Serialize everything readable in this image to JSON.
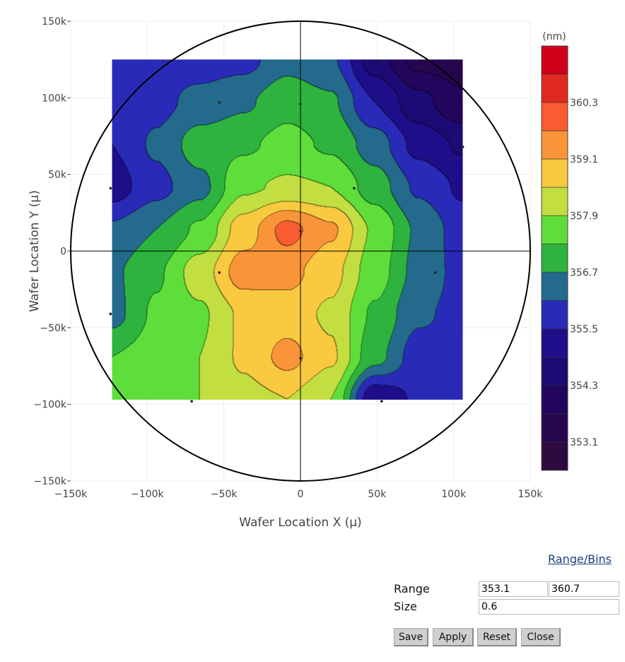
{
  "chart_data": {
    "type": "contour",
    "xlabel": "Wafer Location X (μ)",
    "ylabel": "Wafer Location Y (μ)",
    "xlim": [
      -150000,
      150000
    ],
    "ylim": [
      -150000,
      150000
    ],
    "x_ticks": [
      "−150k",
      "−100k",
      "−50k",
      "0",
      "50k",
      "100k",
      "150k"
    ],
    "y_ticks": [
      "150k",
      "100k",
      "50k",
      "0",
      "−50k",
      "−100k",
      "−150k"
    ],
    "tick_values": [
      -150,
      -100,
      -50,
      0,
      50,
      100,
      150
    ],
    "grid_x_k": [
      -123,
      -94.4,
      -65.75,
      -37.1,
      -8.5,
      20.1,
      48.75,
      77.4,
      106
    ],
    "grid_y_k": [
      125,
      97.25,
      69.5,
      41.75,
      14,
      -13.75,
      -41.5,
      -69.25,
      -97
    ],
    "z": [
      [
        355.8,
        355.8,
        355.8,
        355.9,
        356.5,
        356.2,
        354.6,
        353.5,
        353.4
      ],
      [
        355.8,
        355.9,
        356.3,
        356.6,
        357.1,
        356.8,
        355.5,
        354.5,
        353.8
      ],
      [
        355.5,
        356.2,
        357.0,
        357.2,
        357.5,
        357.2,
        356.4,
        355.3,
        354.8
      ],
      [
        355.2,
        355.9,
        356.5,
        357.8,
        358.0,
        357.9,
        357.0,
        356.0,
        355.4
      ],
      [
        356.2,
        356.7,
        357.4,
        358.8,
        359.9,
        359.2,
        357.8,
        356.6,
        355.8
      ],
      [
        356.6,
        357.2,
        358.2,
        359.4,
        359.3,
        358.7,
        357.6,
        356.5,
        355.9
      ],
      [
        356.5,
        357.4,
        357.8,
        358.6,
        358.8,
        358.4,
        357.2,
        356.2,
        355.9
      ],
      [
        357.3,
        357.6,
        357.9,
        358.6,
        359.3,
        358.6,
        356.9,
        355.8,
        355.7
      ],
      [
        357.5,
        357.6,
        357.9,
        358.3,
        358.5,
        357.9,
        355.0,
        355.6,
        355.7
      ]
    ],
    "sites_k": [
      [
        0,
        96
      ],
      [
        35,
        41
      ],
      [
        0,
        13
      ],
      [
        -53,
        -14
      ],
      [
        0,
        -70
      ],
      [
        -71,
        -98
      ],
      [
        53,
        -98
      ],
      [
        88,
        -14
      ],
      [
        106,
        68
      ],
      [
        -124,
        41
      ],
      [
        -124,
        -41
      ],
      [
        53,
        124
      ],
      [
        -53,
        97
      ]
    ],
    "colorbar": {
      "title": "(nm)",
      "start": 353.1,
      "size": 0.6,
      "end": 360.3,
      "tick_labels": [
        "360.3",
        "359.1",
        "357.9",
        "356.7",
        "355.5",
        "354.3",
        "353.1"
      ],
      "tick_values": [
        360.3,
        359.1,
        357.9,
        356.7,
        355.5,
        354.3,
        353.1
      ],
      "colors": [
        "#2d0a3f",
        "#26064f",
        "#22055d",
        "#1e0a74",
        "#1e0e8a",
        "#2a2ab8",
        "#236a8c",
        "#2db33e",
        "#5fdd3a",
        "#c2de40",
        "#f9c940",
        "#f99538",
        "#f95c30",
        "#e02a20",
        "#d0001a"
      ]
    }
  },
  "controls": {
    "link": "Range/Bins",
    "range_label": "Range",
    "size_label": "Size",
    "range_min": "353.1",
    "range_max": "360.7",
    "size": "0.6",
    "buttons": {
      "save": "Save",
      "apply": "Apply",
      "reset": "Reset",
      "close": "Close"
    }
  }
}
